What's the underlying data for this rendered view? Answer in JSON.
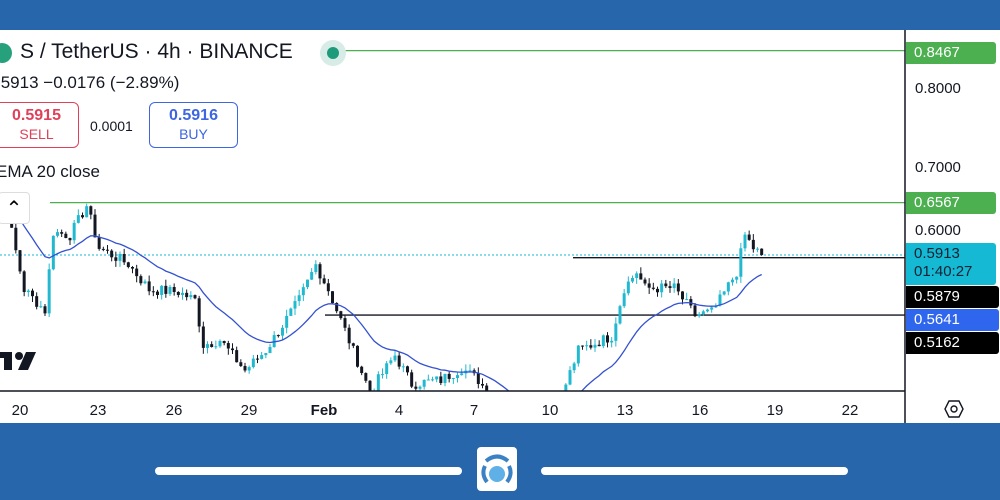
{
  "header": {
    "symbol_title": "S / TetherUS · 4h · BINANCE",
    "price_change": ".5913  −0.0176 (−2.89%)",
    "sell": {
      "price": "0.5915",
      "label": "SELL"
    },
    "spread": "0.0001",
    "buy": {
      "price": "0.5916",
      "label": "BUY"
    },
    "indicator": "EMA 20 close"
  },
  "price_axis": {
    "ticks": [
      "0.8000",
      "0.7000",
      "0.6000"
    ],
    "tags": {
      "alert_high": "0.8467",
      "alert_low": "0.6567",
      "last_price": "0.5913",
      "countdown": "01:40:27",
      "hline_1": "0.5879",
      "ema": "0.5641",
      "hline_2": "0.5162"
    }
  },
  "time_axis": {
    "ticks": [
      "20",
      "23",
      "26",
      "29",
      "Feb",
      "4",
      "7",
      "10",
      "13",
      "16",
      "19",
      "22"
    ]
  },
  "colors": {
    "up": "#22b8cf",
    "down": "#131722",
    "ema": "#3451d1",
    "alert": "#4caf50",
    "last": "#16b9d4",
    "ema_tag": "#2f66ee",
    "frame": "#2866ab"
  },
  "chart_data": {
    "type": "candlestick",
    "interval": "4h",
    "indicator": "EMA 20 close",
    "price_path": [
      [
        "Jan 19 12:00",
        0.644
      ],
      [
        "Jan 20 04:00",
        0.548
      ],
      [
        "Jan 21 00:00",
        0.522
      ],
      [
        "Jan 21 08:00",
        0.62
      ],
      [
        "Jan 22 00:00",
        0.616
      ],
      [
        "Jan 22 16:00",
        0.653
      ],
      [
        "Jan 23 04:00",
        0.6
      ],
      [
        "Jan 24 08:00",
        0.58
      ],
      [
        "Jan 25 04:00",
        0.548
      ],
      [
        "Jan 26 08:00",
        0.545
      ],
      [
        "Jan 27 00:00",
        0.535
      ],
      [
        "Jan 27 08:00",
        0.479
      ],
      [
        "Jan 28 00:00",
        0.485
      ],
      [
        "Jan 29 00:00",
        0.447
      ],
      [
        "Jan 29 20:00",
        0.472
      ],
      [
        "Jan 31 04:00",
        0.535
      ],
      [
        "Jan 31 20:00",
        0.579
      ],
      [
        "Feb 1 08:00",
        0.548
      ],
      [
        "Feb 2 00:00",
        0.497
      ],
      [
        "Feb 3 00:00",
        0.42
      ],
      [
        "Feb 4 00:00",
        0.466
      ],
      [
        "Feb 4 16:00",
        0.43
      ],
      [
        "Feb 5 20:00",
        0.435
      ],
      [
        "Feb 6 16:00",
        0.45
      ],
      [
        "Feb 7 08:00",
        0.435
      ],
      [
        "Feb 8 16:00",
        0.38
      ],
      [
        "Feb 10 00:00",
        0.38
      ],
      [
        "Feb 10 16:00",
        0.416
      ],
      [
        "Feb 11 08:00",
        0.472
      ],
      [
        "Feb 12 16:00",
        0.49
      ],
      [
        "Feb 13 04:00",
        0.55
      ],
      [
        "Feb 13 16:00",
        0.57
      ],
      [
        "Feb 14 00:00",
        0.55
      ],
      [
        "Feb 15 04:00",
        0.55
      ],
      [
        "Feb 16 00:00",
        0.516
      ],
      [
        "Feb 16 16:00",
        0.52
      ],
      [
        "Feb 17 00:00",
        0.535
      ],
      [
        "Feb 17 16:00",
        0.57
      ],
      [
        "Feb 18 00:00",
        0.616
      ],
      [
        "Feb 18 08:00",
        0.6
      ],
      [
        "Feb 18 16:00",
        0.5913
      ]
    ],
    "horizontal_lines": [
      {
        "price": 0.8467,
        "kind": "alert"
      },
      {
        "price": 0.6567,
        "kind": "alert"
      },
      {
        "price": 0.5879,
        "kind": "line"
      },
      {
        "price": 0.5162,
        "kind": "line"
      }
    ],
    "last_price": 0.5913,
    "ylim": [
      0.421,
      0.87
    ]
  }
}
